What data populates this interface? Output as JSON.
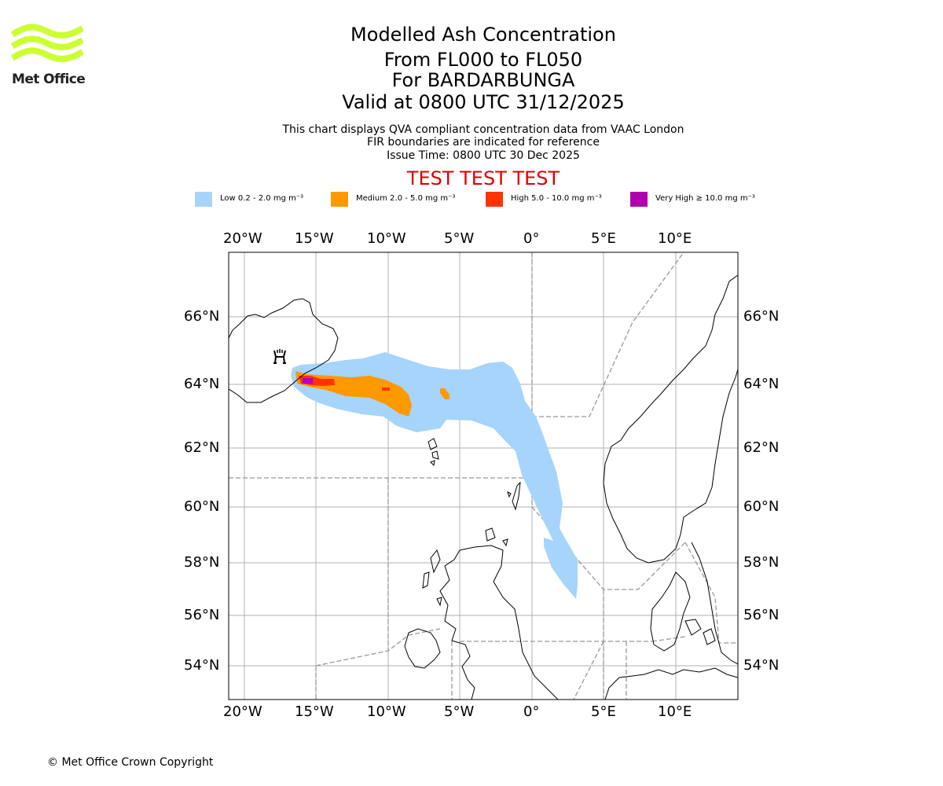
{
  "logo": {
    "text": "Met Office",
    "icon": "met-office-wave-logo",
    "color": "#ccff33"
  },
  "title": {
    "line1": "Modelled Ash Concentration",
    "line2": "From FL000 to FL050",
    "line3": "For BARDARBUNGA",
    "line4": "Valid at 0800 UTC 31/12/2025"
  },
  "subtitle": {
    "line1": "This chart displays QVA compliant concentration data from VAAC London",
    "line2": "FIR boundaries are indicated for reference",
    "line3": "Issue Time: 0800 UTC 30 Dec 2025"
  },
  "test_banner": "TEST TEST TEST",
  "legend": [
    {
      "label": "Low 0.2 - 2.0 mg m⁻³",
      "color": "#a6d4fb"
    },
    {
      "label": "Medium 2.0 - 5.0 mg m⁻³",
      "color": "#ff9900"
    },
    {
      "label": "High 5.0 - 10.0 mg m⁻³",
      "color": "#ff3300"
    },
    {
      "label": "Very High ≥ 10.0 mg m⁻³",
      "color": "#b000b0"
    }
  ],
  "map": {
    "lon_labels": [
      "20°W",
      "15°W",
      "10°W",
      "5°W",
      "0°",
      "5°E",
      "10°E"
    ],
    "lat_labels": [
      "66°N",
      "64°N",
      "62°N",
      "60°N",
      "58°N",
      "56°N",
      "54°N"
    ],
    "volcano_icon": "volcano-symbol-icon"
  },
  "copyright": "© Met Office Crown Copyright"
}
